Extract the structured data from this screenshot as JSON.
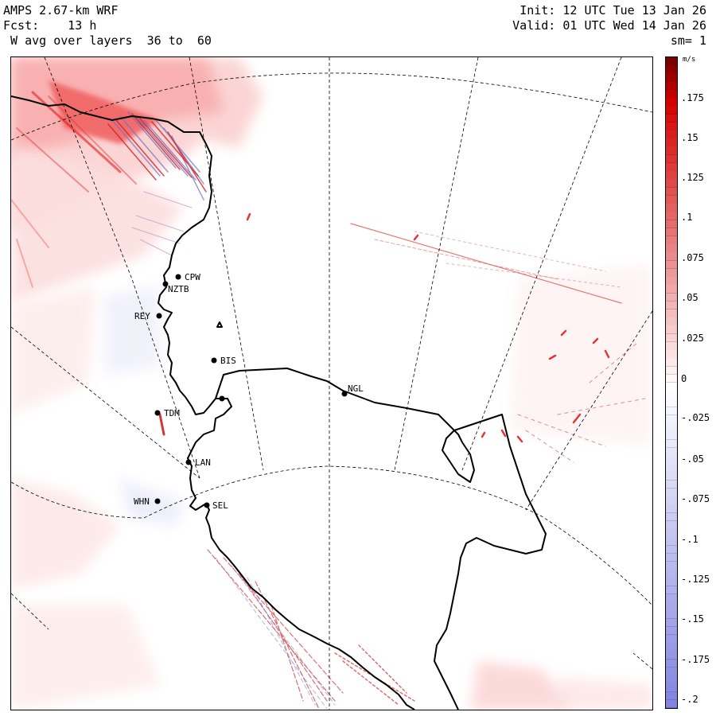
{
  "header": {
    "model": "AMPS 2.67-km WRF",
    "forecast": "Fcst:    13 h",
    "field": " W avg over layers  36 to  60",
    "init": "Init: 12 UTC Tue 13 Jan 26",
    "valid": "Valid: 01 UTC Wed 14 Jan 26",
    "smoothing": "sm= 1"
  },
  "colorbar": {
    "unit": "m/s",
    "labels": [
      ".175",
      ".15",
      ".125",
      ".1",
      ".075",
      ".05",
      ".025",
      "0",
      "-.025",
      "-.05",
      "-.075",
      "-.1",
      "-.125",
      "-.15",
      "-.175",
      "-.2"
    ],
    "positive_color": "#d40000",
    "negative_color": "#8080e0",
    "max_color": "#7a0000"
  },
  "stations": [
    {
      "id": "CPW",
      "label": "CPW"
    },
    {
      "id": "NZTB",
      "label": "NZTB"
    },
    {
      "id": "REY",
      "label": "REY"
    },
    {
      "id": "BIS",
      "label": "BIS"
    },
    {
      "id": "TDM",
      "label": "TDM"
    },
    {
      "id": "NGL",
      "label": "NGL"
    },
    {
      "id": "LAN",
      "label": "LAN"
    },
    {
      "id": "WHN",
      "label": "WHN"
    },
    {
      "id": "SEL",
      "label": "SEL"
    }
  ]
}
